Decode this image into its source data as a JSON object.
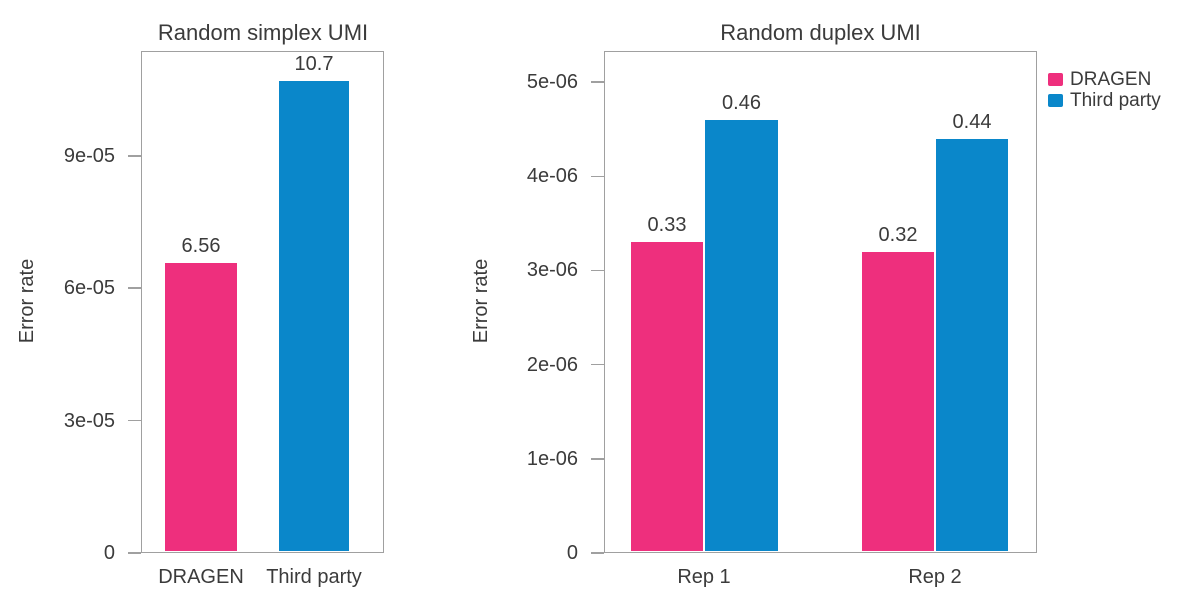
{
  "colors": {
    "dragen": "#ee2f7d",
    "third_party": "#0a87ca",
    "text": "#3b3b3b",
    "axis_line": "#a0a0a0",
    "background": "#ffffff"
  },
  "legend": {
    "position": "top-right",
    "items": [
      {
        "label": "DRAGEN",
        "color": "#ee2f7d"
      },
      {
        "label": "Third party",
        "color": "#0a87ca"
      }
    ]
  },
  "chart_data": [
    {
      "id": "random-simplex-umi",
      "type": "bar",
      "title": "Random simplex UMI",
      "xlabel": "",
      "ylabel": "Error rate",
      "grid": false,
      "ylim": [
        0,
        0.00011375
      ],
      "yticks": [
        {
          "value": 0,
          "label": "0"
        },
        {
          "value": 3e-05,
          "label": "3e-05"
        },
        {
          "value": 6e-05,
          "label": "6e-05"
        },
        {
          "value": 9e-05,
          "label": "9e-05"
        }
      ],
      "categories": [
        "DRAGEN",
        "Third party"
      ],
      "bars": [
        {
          "category": "DRAGEN",
          "series": "DRAGEN",
          "value": 6.56e-05,
          "label": "6.56"
        },
        {
          "category": "Third party",
          "series": "Third party",
          "value": 0.000107,
          "label": "10.7"
        }
      ]
    },
    {
      "id": "random-duplex-umi",
      "type": "bar",
      "title": "Random duplex UMI",
      "xlabel": "",
      "ylabel": "Error rate",
      "grid": false,
      "ylim": [
        0,
        5.33e-06
      ],
      "yticks": [
        {
          "value": 0,
          "label": "0"
        },
        {
          "value": 1e-06,
          "label": "1e-06"
        },
        {
          "value": 2e-06,
          "label": "2e-06"
        },
        {
          "value": 3e-06,
          "label": "3e-06"
        },
        {
          "value": 4e-06,
          "label": "4e-06"
        },
        {
          "value": 5e-06,
          "label": "5e-06"
        }
      ],
      "categories": [
        "Rep 1",
        "Rep 2"
      ],
      "bars": [
        {
          "category": "Rep 1",
          "series": "DRAGEN",
          "value": 3.3e-06,
          "label": "0.33"
        },
        {
          "category": "Rep 1",
          "series": "Third party",
          "value": 4.6e-06,
          "label": "0.46"
        },
        {
          "category": "Rep 2",
          "series": "DRAGEN",
          "value": 3.2e-06,
          "label": "0.32"
        },
        {
          "category": "Rep 2",
          "series": "Third party",
          "value": 4.4e-06,
          "label": "0.44"
        }
      ]
    }
  ]
}
